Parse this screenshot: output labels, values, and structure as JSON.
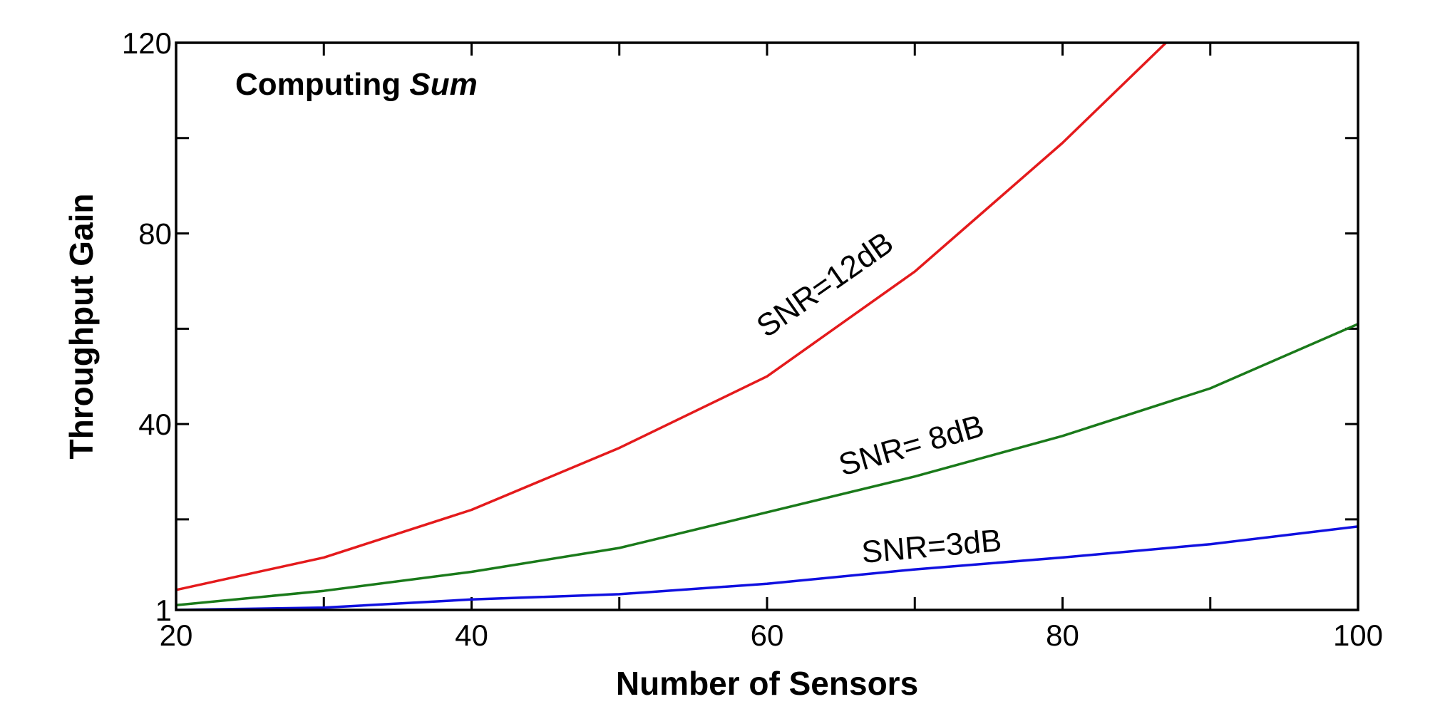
{
  "chart_data": {
    "type": "line",
    "annotation": {
      "text_regular": "Computing ",
      "text_italic": "Sum"
    },
    "xlabel": "Number of Sensors",
    "ylabel": "Throughput Gain",
    "xlim": [
      20,
      100
    ],
    "ylim": [
      1,
      120
    ],
    "x_ticks": [
      20,
      30,
      40,
      50,
      60,
      70,
      80,
      90,
      100
    ],
    "x_tick_labels": [
      "20",
      "40",
      "60",
      "80",
      "100"
    ],
    "x_tick_label_values": [
      20,
      40,
      60,
      80,
      100
    ],
    "y_ticks": [
      1,
      20,
      40,
      60,
      80,
      100,
      120
    ],
    "y_tick_labels": [
      "1",
      "40",
      "80",
      "120"
    ],
    "y_tick_label_values": [
      1,
      40,
      80,
      120
    ],
    "grid": false,
    "legend": "none",
    "series": [
      {
        "name": "SNR=12dB",
        "color": "#e41a1c",
        "x": [
          20,
          30,
          40,
          50,
          60,
          70,
          80,
          87
        ],
        "values": [
          5.2,
          12,
          22,
          35,
          50,
          72,
          99,
          120
        ]
      },
      {
        "name": "SNR= 8dB",
        "color": "#1a7a1a",
        "x": [
          20,
          30,
          40,
          50,
          60,
          70,
          80,
          90,
          100
        ],
        "values": [
          2,
          5,
          9,
          14,
          21.5,
          29,
          37.5,
          47.5,
          61
        ]
      },
      {
        "name": "SNR=3dB",
        "color": "#1010e0",
        "x": [
          20,
          30,
          40,
          50,
          60,
          70,
          80,
          90,
          100
        ],
        "values": [
          1,
          1.5,
          3.2,
          4.3,
          6.5,
          9.5,
          12,
          14.8,
          18.5
        ]
      }
    ]
  }
}
